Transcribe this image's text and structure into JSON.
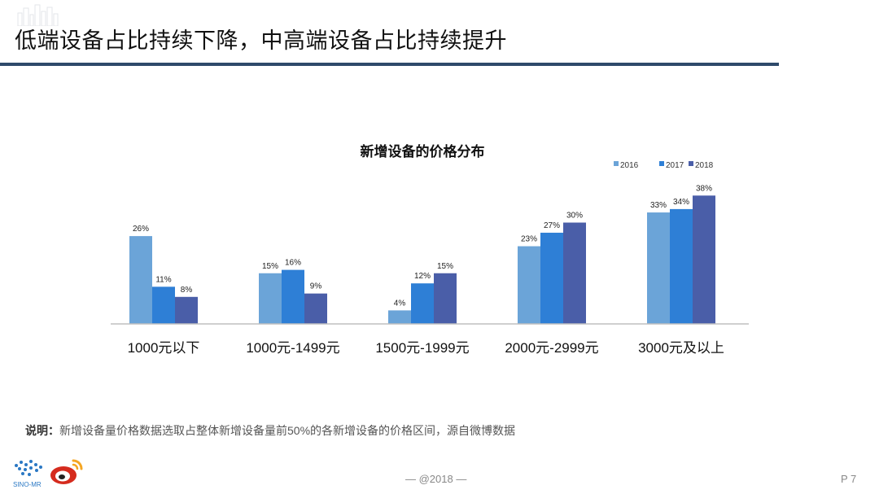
{
  "slide": {
    "title": "低端设备占比持续下降，中高端设备占比持续提升",
    "note_label": "说明：",
    "note_text": "新增设备量价格数据选取占整体新增设备量前50%的各新增设备的价格区间，源自微博数据",
    "footer_center": "— @2018 —",
    "page_number": "P 7",
    "logo_text": "SINO-MR"
  },
  "colors": {
    "title_rule": "#2f4a6a",
    "s2016": "#6ba4d8",
    "s2017": "#2e7fd6",
    "s2018": "#4a5ea8",
    "axis": "#bfbfbf",
    "weibo_red": "#d52b1e",
    "logo_blue": "#2a78c4"
  },
  "chart_data": {
    "type": "bar",
    "title": "新增设备的价格分布",
    "categories": [
      "1000元以下",
      "1000元-1499元",
      "1500元-1999元",
      "2000元-2999元",
      "3000元及以上"
    ],
    "series": [
      {
        "name": "2016",
        "values": [
          26,
          15,
          4,
          23,
          33
        ]
      },
      {
        "name": "2017",
        "values": [
          11,
          16,
          12,
          27,
          34
        ]
      },
      {
        "name": "2018",
        "values": [
          8,
          9,
          15,
          30,
          38
        ]
      }
    ],
    "value_suffix": "%",
    "ylim": [
      0,
      40
    ],
    "xlabel": "",
    "ylabel": "",
    "grid": false,
    "legend": "top-right"
  }
}
